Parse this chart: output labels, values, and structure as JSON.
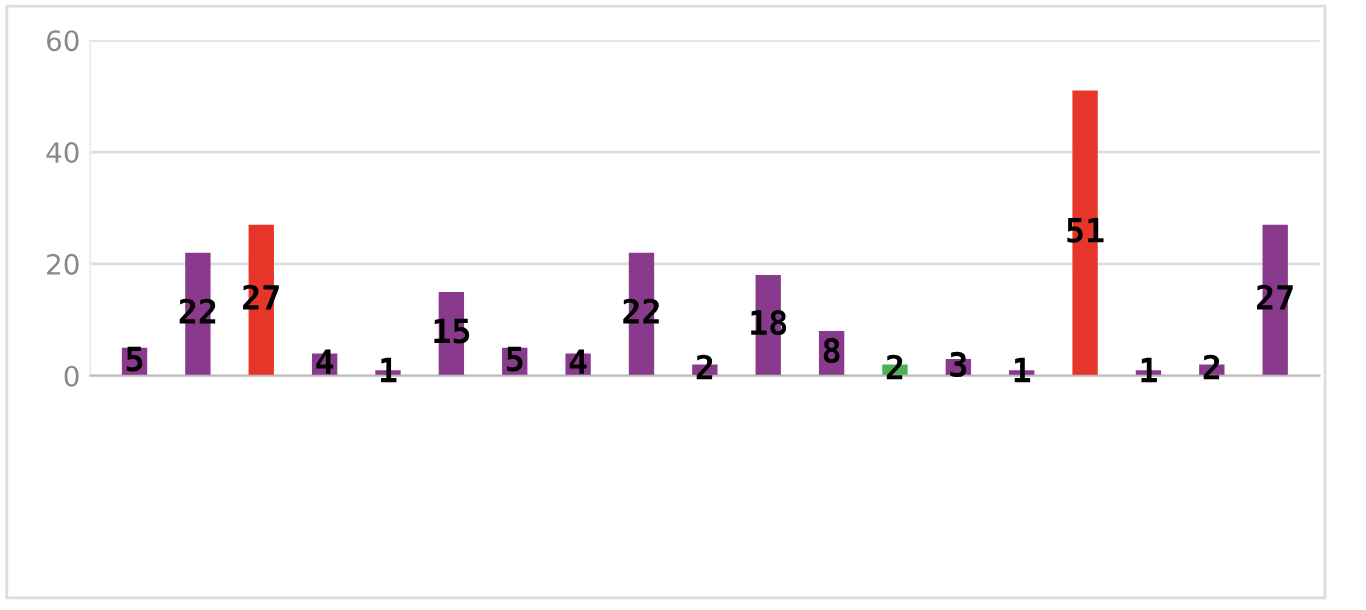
{
  "chart_data": {
    "type": "bar",
    "categories": [
      null,
      null,
      null,
      null,
      null,
      null,
      null,
      null,
      null,
      null,
      null,
      null,
      null,
      null,
      null,
      null,
      null,
      null,
      null
    ],
    "values": [
      5,
      22,
      27,
      4,
      1,
      15,
      5,
      4,
      22,
      2,
      18,
      8,
      2,
      3,
      1,
      51,
      1,
      2,
      27
    ],
    "colors": [
      "#8a3a8c",
      "#8a3a8c",
      "#e8352a",
      "#8a3a8c",
      "#8a3a8c",
      "#8a3a8c",
      "#8a3a8c",
      "#8a3a8c",
      "#8a3a8c",
      "#8a3a8c",
      "#8a3a8c",
      "#8a3a8c",
      "#4caf50",
      "#8a3a8c",
      "#8a3a8c",
      "#e8352a",
      "#8a3a8c",
      "#8a3a8c",
      "#8a3a8c"
    ],
    "ylim": [
      0,
      60
    ],
    "yticks": [
      0,
      20,
      40,
      60
    ],
    "grid": "y",
    "data_labels": true
  }
}
